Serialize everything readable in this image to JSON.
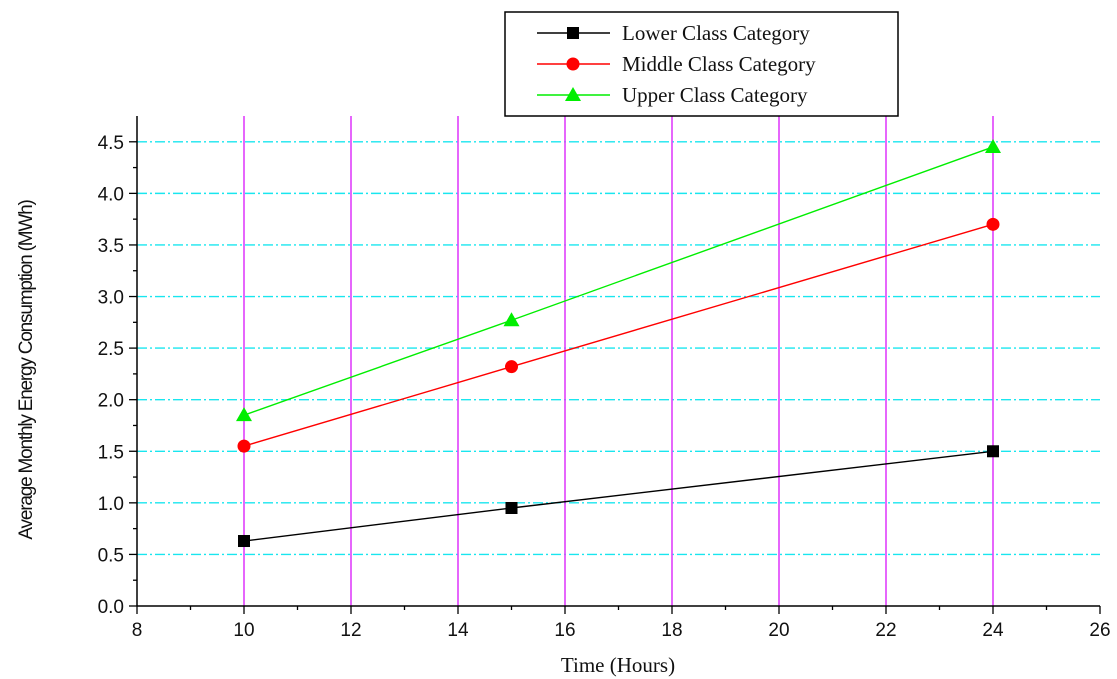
{
  "chart_data": {
    "type": "line",
    "title": "",
    "xlabel": "Time (Hours)",
    "ylabel": "Average Monthly Energy Consumption (MWh)",
    "xlim": [
      8,
      26
    ],
    "ylim": [
      0,
      4.75
    ],
    "x_ticks": [
      8,
      10,
      12,
      14,
      16,
      18,
      20,
      22,
      24,
      26
    ],
    "x_tick_labels": [
      "8",
      "10",
      "12",
      "14",
      "16",
      "18",
      "20",
      "22",
      "24",
      "26"
    ],
    "y_ticks": [
      0,
      0.5,
      1.0,
      1.5,
      2.0,
      2.5,
      3.0,
      3.5,
      4.0,
      4.5
    ],
    "y_tick_labels": [
      "0.0",
      "0.5",
      "1.0",
      "1.5",
      "2.0",
      "2.5",
      "3.0",
      "3.5",
      "4.0",
      "4.5"
    ],
    "x_grid": true,
    "y_grid": true,
    "x_grid_color": "#e040fb",
    "y_grid_color": "#19e6ef",
    "legend_placement": "top-center",
    "x": [
      10,
      15,
      24
    ],
    "series": [
      {
        "name": "Lower Class Category",
        "values": [
          0.63,
          0.95,
          1.5
        ],
        "color": "#000000",
        "marker": "square"
      },
      {
        "name": "Middle Class Category",
        "values": [
          1.55,
          2.32,
          3.7
        ],
        "color": "#ff0000",
        "marker": "circle"
      },
      {
        "name": "Upper Class Category",
        "values": [
          1.85,
          2.77,
          4.45
        ],
        "color": "#00ee00",
        "marker": "triangle"
      }
    ]
  }
}
